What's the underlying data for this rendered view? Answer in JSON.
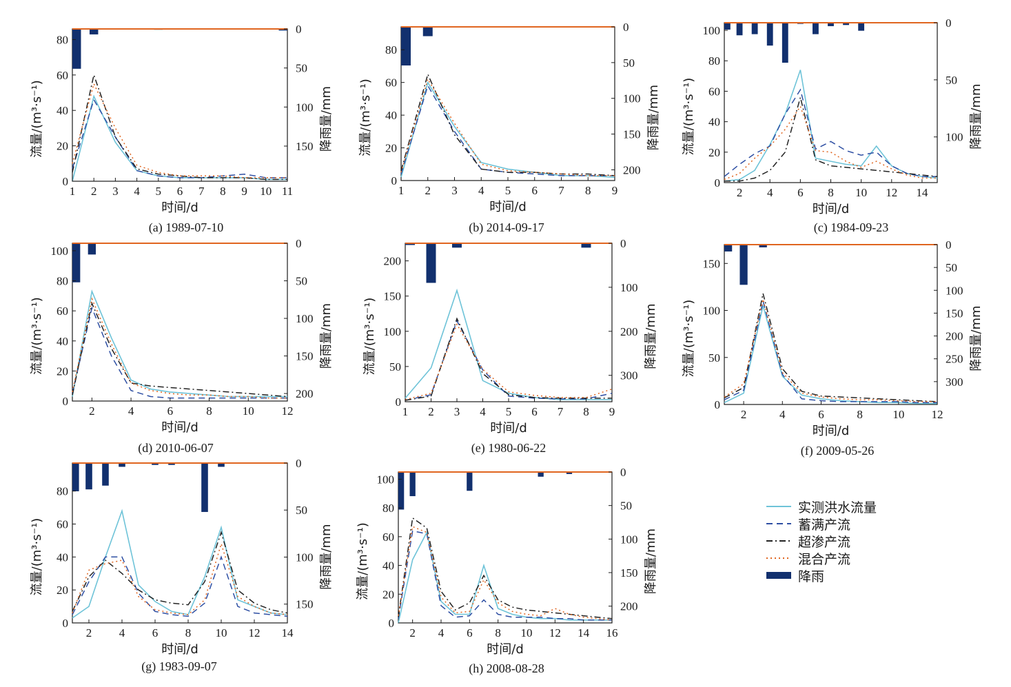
{
  "legend": {
    "observed": "实测洪水流量",
    "saturation": "蓄满产流",
    "infiltration": "超渗产流",
    "mixed": "混合产流",
    "rain": "降雨"
  },
  "colors": {
    "observed": "#6ec3d8",
    "saturation": "#2e4fa3",
    "infiltration": "#222222",
    "mixed": "#e0651f",
    "rain": "#12306e",
    "baseline": "#e0651f"
  },
  "chart_data": [
    {
      "type": "line",
      "caption": "(a) 1989-07-10",
      "ylabel": "流量/(m³·s⁻¹)",
      "y2label": "降雨量/mm",
      "xlabel": "时间/d",
      "x": [
        1,
        2,
        3,
        4,
        5,
        6,
        7,
        8,
        9,
        10,
        11
      ],
      "xticks": [
        1,
        2,
        3,
        4,
        5,
        6,
        7,
        8,
        9,
        10,
        11
      ],
      "ylim": [
        0,
        86
      ],
      "yticks": [
        0,
        20,
        40,
        60,
        80
      ],
      "y2lim": [
        0,
        195
      ],
      "y2ticks": [
        0,
        50,
        100,
        150
      ],
      "series": [
        {
          "key": "observed",
          "values": [
            0,
            48,
            22,
            6,
            3,
            2,
            2,
            2,
            2,
            1,
            1
          ]
        },
        {
          "key": "saturation",
          "values": [
            7,
            46,
            25,
            6,
            3,
            2,
            2,
            3,
            4,
            2,
            2
          ]
        },
        {
          "key": "infiltration",
          "values": [
            5,
            60,
            25,
            7,
            4,
            3,
            2,
            2,
            2,
            1,
            1
          ]
        },
        {
          "key": "mixed",
          "values": [
            10,
            55,
            30,
            9,
            5,
            3,
            3,
            3,
            2,
            2,
            2
          ]
        }
      ],
      "rain": [
        51,
        7,
        0,
        0,
        1,
        0,
        0,
        0,
        0,
        0,
        2
      ]
    },
    {
      "type": "line",
      "caption": "(b) 2014-09-17",
      "ylabel": "流量/(m³·s⁻¹)",
      "y2label": "降雨量/mm",
      "xlabel": "时间/d",
      "x": [
        1,
        2,
        3,
        4,
        5,
        6,
        7,
        8,
        9
      ],
      "xticks": [
        1,
        2,
        3,
        4,
        5,
        6,
        7,
        8,
        9
      ],
      "ylim": [
        0,
        94
      ],
      "yticks": [
        0,
        20,
        40,
        60,
        80
      ],
      "y2lim": [
        0,
        215
      ],
      "y2ticks": [
        0,
        50,
        100,
        150,
        200
      ],
      "series": [
        {
          "key": "observed",
          "values": [
            2,
            60,
            33,
            11,
            7,
            5,
            3,
            3,
            2
          ]
        },
        {
          "key": "saturation",
          "values": [
            4,
            58,
            30,
            7,
            5,
            4,
            3,
            3,
            3
          ]
        },
        {
          "key": "infiltration",
          "values": [
            6,
            65,
            28,
            7,
            5,
            5,
            4,
            4,
            3
          ]
        },
        {
          "key": "mixed",
          "values": [
            5,
            62,
            35,
            10,
            6,
            5,
            4,
            3,
            3
          ]
        }
      ],
      "rain": [
        54,
        13,
        0,
        0,
        0,
        0,
        0,
        0,
        0
      ]
    },
    {
      "type": "line",
      "caption": "(c) 1984-09-23",
      "ylabel": "流量/(m³·s⁻¹)",
      "y2label": "降雨量/mm",
      "xlabel": "时间/d",
      "x": [
        1,
        2,
        3,
        4,
        5,
        6,
        7,
        8,
        9,
        10,
        11,
        12,
        13,
        14,
        15
      ],
      "xticks": [
        2,
        4,
        6,
        8,
        10,
        12,
        14
      ],
      "ylim": [
        0,
        105
      ],
      "yticks": [
        0,
        20,
        40,
        60,
        80,
        100
      ],
      "y2lim": [
        0,
        140
      ],
      "y2ticks": [
        0,
        50,
        100
      ],
      "series": [
        {
          "key": "observed",
          "values": [
            1,
            2,
            8,
            25,
            45,
            74,
            16,
            14,
            12,
            11,
            24,
            11,
            6,
            4,
            3
          ]
        },
        {
          "key": "saturation",
          "values": [
            4,
            12,
            19,
            24,
            45,
            61,
            22,
            27,
            21,
            18,
            20,
            11,
            6,
            4,
            4
          ]
        },
        {
          "key": "infiltration",
          "values": [
            1,
            1,
            3,
            8,
            20,
            56,
            15,
            11,
            10,
            9,
            8,
            7,
            6,
            5,
            4
          ]
        },
        {
          "key": "mixed",
          "values": [
            2,
            6,
            16,
            24,
            35,
            50,
            21,
            20,
            14,
            10,
            14,
            9,
            5,
            3,
            3
          ]
        }
      ],
      "rain": [
        6,
        11,
        10,
        20,
        35,
        1,
        10,
        3,
        2,
        7,
        0,
        0,
        0,
        0,
        0
      ]
    },
    {
      "type": "line",
      "caption": "(d) 2010-06-07",
      "ylabel": "流量/(m³·s⁻¹)",
      "y2label": "降雨量/mm",
      "xlabel": "时间/d",
      "x": [
        1,
        2,
        3,
        4,
        5,
        6,
        7,
        8,
        9,
        10,
        11,
        12
      ],
      "xticks": [
        2,
        4,
        6,
        8,
        10,
        12
      ],
      "ylim": [
        0,
        105
      ],
      "yticks": [
        0,
        20,
        40,
        60,
        80,
        100
      ],
      "y2lim": [
        0,
        210
      ],
      "y2ticks": [
        0,
        50,
        100,
        150,
        200
      ],
      "series": [
        {
          "key": "observed",
          "values": [
            3,
            73,
            42,
            14,
            8,
            6,
            5,
            4,
            3,
            3,
            3,
            3
          ]
        },
        {
          "key": "saturation",
          "values": [
            5,
            62,
            30,
            7,
            3,
            2,
            2,
            2,
            2,
            2,
            2,
            2
          ]
        },
        {
          "key": "infiltration",
          "values": [
            4,
            65,
            35,
            12,
            10,
            9,
            8,
            7,
            6,
            5,
            4,
            3
          ]
        },
        {
          "key": "mixed",
          "values": [
            6,
            68,
            38,
            12,
            7,
            5,
            4,
            4,
            3,
            3,
            2,
            2
          ]
        }
      ],
      "rain": [
        52,
        15,
        0,
        0,
        0,
        0,
        0,
        0,
        0,
        0,
        0,
        0
      ]
    },
    {
      "type": "line",
      "caption": "(e) 1980-06-22",
      "ylabel": "流量/(m³·s⁻¹)",
      "y2label": "降雨量/mm",
      "xlabel": "时间/d",
      "x": [
        1,
        2,
        3,
        4,
        5,
        6,
        7,
        8,
        9
      ],
      "xticks": [
        1,
        2,
        3,
        4,
        5,
        6,
        7,
        8,
        9
      ],
      "ylim": [
        0,
        225
      ],
      "yticks": [
        0,
        50,
        100,
        150,
        200
      ],
      "y2lim": [
        0,
        360
      ],
      "y2ticks": [
        0,
        100,
        200,
        300
      ],
      "series": [
        {
          "key": "observed",
          "values": [
            5,
            48,
            158,
            30,
            12,
            6,
            3,
            3,
            3
          ]
        },
        {
          "key": "saturation",
          "values": [
            2,
            10,
            115,
            45,
            8,
            5,
            4,
            4,
            12
          ]
        },
        {
          "key": "infiltration",
          "values": [
            2,
            8,
            118,
            40,
            10,
            6,
            5,
            5,
            5
          ]
        },
        {
          "key": "mixed",
          "values": [
            3,
            12,
            110,
            46,
            14,
            9,
            6,
            6,
            18
          ]
        }
      ],
      "rain": [
        4,
        90,
        10,
        0,
        0,
        0,
        0,
        10,
        0
      ]
    },
    {
      "type": "line",
      "caption": "(f) 2009-05-26",
      "ylabel": "流量/(m³·s⁻¹)",
      "y2label": "降雨量/mm",
      "xlabel": "时间/d",
      "x": [
        1,
        2,
        3,
        4,
        5,
        6,
        7,
        8,
        9,
        10,
        11,
        12
      ],
      "xticks": [
        2,
        4,
        6,
        8,
        10,
        12
      ],
      "ylim": [
        0,
        170
      ],
      "yticks": [
        0,
        50,
        100,
        150
      ],
      "y2lim": [
        0,
        350
      ],
      "y2ticks": [
        0,
        50,
        100,
        150,
        200,
        250,
        300
      ],
      "series": [
        {
          "key": "observed",
          "values": [
            2,
            12,
            105,
            30,
            10,
            6,
            4,
            3,
            2,
            2,
            1,
            1
          ]
        },
        {
          "key": "saturation",
          "values": [
            5,
            15,
            110,
            32,
            6,
            4,
            3,
            3,
            3,
            3,
            2,
            2
          ]
        },
        {
          "key": "infiltration",
          "values": [
            7,
            18,
            118,
            38,
            14,
            9,
            8,
            7,
            6,
            5,
            4,
            3
          ]
        },
        {
          "key": "mixed",
          "values": [
            8,
            22,
            112,
            34,
            12,
            8,
            6,
            5,
            5,
            4,
            3,
            3
          ]
        }
      ],
      "rain": [
        15,
        88,
        6,
        0,
        0,
        0,
        0,
        0,
        0,
        0,
        0,
        0
      ]
    },
    {
      "type": "line",
      "caption": "(g) 1983-09-07",
      "ylabel": "流量/(m³·s⁻¹)",
      "y2label": "降雨量/mm",
      "xlabel": "时间/d",
      "x": [
        1,
        2,
        3,
        4,
        5,
        6,
        7,
        8,
        9,
        10,
        11,
        12,
        13,
        14
      ],
      "xticks": [
        2,
        4,
        6,
        8,
        10,
        12,
        14
      ],
      "ylim": [
        0,
        97
      ],
      "yticks": [
        0,
        20,
        40,
        60,
        80
      ],
      "y2lim": [
        0,
        170
      ],
      "y2ticks": [
        0,
        50,
        100,
        150
      ],
      "series": [
        {
          "key": "observed",
          "values": [
            3,
            10,
            40,
            68,
            23,
            13,
            7,
            5,
            28,
            58,
            14,
            10,
            6,
            5
          ]
        },
        {
          "key": "saturation",
          "values": [
            5,
            25,
            40,
            40,
            18,
            7,
            5,
            4,
            12,
            40,
            10,
            6,
            5,
            4
          ]
        },
        {
          "key": "infiltration",
          "values": [
            7,
            28,
            38,
            30,
            20,
            14,
            12,
            11,
            25,
            55,
            20,
            12,
            8,
            6
          ]
        },
        {
          "key": "mixed",
          "values": [
            6,
            32,
            36,
            38,
            16,
            8,
            6,
            5,
            14,
            48,
            16,
            10,
            6,
            5
          ]
        }
      ],
      "rain": [
        30,
        28,
        24,
        4,
        0,
        2,
        2,
        0,
        52,
        4,
        0,
        0,
        0,
        0
      ]
    },
    {
      "type": "line",
      "caption": "(h) 2008-08-28",
      "ylabel": "流量/(m³·s⁻¹)",
      "y2label": "降雨量/mm",
      "xlabel": "时间/d",
      "x": [
        1,
        2,
        3,
        4,
        5,
        6,
        7,
        8,
        9,
        10,
        11,
        12,
        13,
        14,
        15,
        16
      ],
      "xticks": [
        2,
        4,
        6,
        8,
        10,
        12,
        14,
        16
      ],
      "ylim": [
        0,
        105
      ],
      "yticks": [
        0,
        20,
        40,
        60,
        80,
        100
      ],
      "y2lim": [
        0,
        225
      ],
      "y2ticks": [
        0,
        50,
        100,
        150,
        200
      ],
      "series": [
        {
          "key": "observed",
          "values": [
            0,
            44,
            63,
            15,
            6,
            6,
            40,
            10,
            6,
            4,
            3,
            3,
            2,
            2,
            2,
            2
          ]
        },
        {
          "key": "saturation",
          "values": [
            3,
            64,
            62,
            12,
            4,
            5,
            16,
            6,
            4,
            4,
            4,
            3,
            3,
            2,
            2,
            2
          ]
        },
        {
          "key": "infiltration",
          "values": [
            4,
            73,
            66,
            22,
            9,
            14,
            33,
            16,
            11,
            9,
            8,
            7,
            6,
            5,
            4,
            3
          ]
        },
        {
          "key": "mixed",
          "values": [
            5,
            67,
            63,
            18,
            7,
            8,
            30,
            14,
            8,
            6,
            5,
            10,
            6,
            4,
            3,
            2
          ]
        }
      ],
      "rain": [
        56,
        36,
        0,
        0,
        0,
        28,
        0,
        0,
        0,
        0,
        7,
        0,
        3,
        0,
        0,
        0
      ]
    }
  ]
}
